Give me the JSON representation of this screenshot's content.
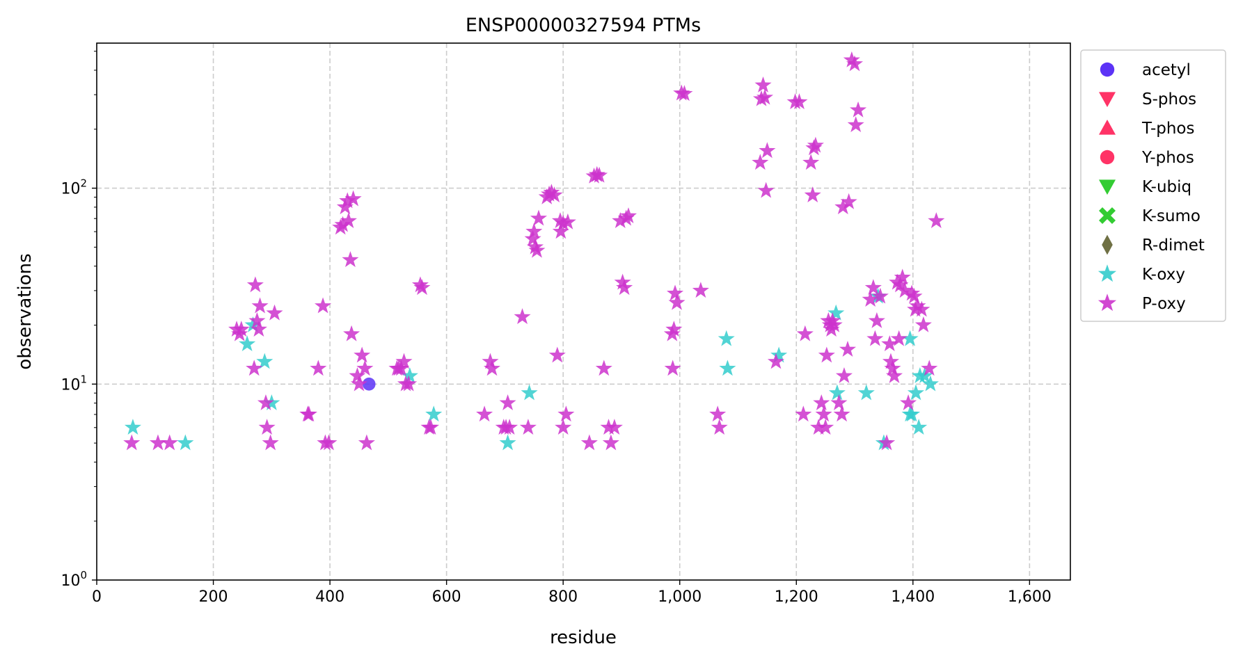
{
  "chart_data": {
    "type": "scatter",
    "title": "ENSP00000327594 PTMs",
    "xlabel": "residue",
    "ylabel": "observations",
    "xlim": [
      0,
      1670
    ],
    "ylim": [
      1,
      550
    ],
    "yscale": "log",
    "grid": true,
    "legend_position": "outside-right",
    "x_ticks": [
      0,
      200,
      400,
      600,
      800,
      1000,
      1200,
      1400,
      1600
    ],
    "x_tick_labels": [
      "0",
      "200",
      "400",
      "600",
      "800",
      "1,000",
      "1,200",
      "1,400",
      "1,600"
    ],
    "y_ticks": [
      1,
      10,
      100
    ],
    "y_tick_labels": [
      {
        "base": "10",
        "exp": "0"
      },
      {
        "base": "10",
        "exp": "1"
      },
      {
        "base": "10",
        "exp": "2"
      }
    ],
    "series": [
      {
        "name": "acetyl",
        "marker": "circle",
        "color": "#5c33f6",
        "points": [
          [
            467,
            10
          ]
        ]
      },
      {
        "name": "S-phos",
        "marker": "triangle-down",
        "color": "#ff3366",
        "points": []
      },
      {
        "name": "T-phos",
        "marker": "triangle-up",
        "color": "#ff3366",
        "points": []
      },
      {
        "name": "Y-phos",
        "marker": "circle",
        "color": "#ff3366",
        "points": []
      },
      {
        "name": "K-ubiq",
        "marker": "triangle-down",
        "color": "#33cc33",
        "points": []
      },
      {
        "name": "K-sumo",
        "marker": "x",
        "color": "#33cc33",
        "points": []
      },
      {
        "name": "R-dimet",
        "marker": "diamond",
        "color": "#6f7044",
        "points": []
      },
      {
        "name": "K-oxy",
        "marker": "star",
        "color": "#33cccc",
        "points": [
          [
            62,
            6
          ],
          [
            152,
            5
          ],
          [
            258,
            16
          ],
          [
            268,
            20
          ],
          [
            288,
            13
          ],
          [
            300,
            8
          ],
          [
            537,
            11
          ],
          [
            578,
            7
          ],
          [
            705,
            5
          ],
          [
            742,
            9
          ],
          [
            1080,
            17
          ],
          [
            1082,
            12
          ],
          [
            1170,
            14
          ],
          [
            1268,
            23
          ],
          [
            1270,
            9
          ],
          [
            1320,
            9
          ],
          [
            1340,
            28
          ],
          [
            1350,
            5
          ],
          [
            1395,
            17
          ],
          [
            1395,
            7
          ],
          [
            1398,
            7
          ],
          [
            1405,
            9
          ],
          [
            1410,
            6
          ],
          [
            1412,
            11
          ],
          [
            1420,
            11
          ],
          [
            1430,
            10
          ]
        ]
      },
      {
        "name": "P-oxy",
        "marker": "star",
        "color": "#cc33cc",
        "points": [
          [
            60,
            5
          ],
          [
            105,
            5
          ],
          [
            125,
            5
          ],
          [
            240,
            19
          ],
          [
            245,
            18
          ],
          [
            248,
            19
          ],
          [
            270,
            12
          ],
          [
            272,
            32
          ],
          [
            275,
            21
          ],
          [
            278,
            19
          ],
          [
            280,
            25
          ],
          [
            290,
            8
          ],
          [
            292,
            6
          ],
          [
            298,
            5
          ],
          [
            305,
            23
          ],
          [
            362,
            7
          ],
          [
            364,
            7
          ],
          [
            380,
            12
          ],
          [
            388,
            25
          ],
          [
            392,
            5
          ],
          [
            398,
            5
          ],
          [
            418,
            63
          ],
          [
            422,
            65
          ],
          [
            426,
            80
          ],
          [
            430,
            86
          ],
          [
            432,
            68
          ],
          [
            435,
            43
          ],
          [
            437,
            18
          ],
          [
            440,
            88
          ],
          [
            447,
            11
          ],
          [
            450,
            10
          ],
          [
            455,
            14
          ],
          [
            460,
            12
          ],
          [
            463,
            5
          ],
          [
            515,
            12
          ],
          [
            518,
            12
          ],
          [
            522,
            12
          ],
          [
            527,
            13
          ],
          [
            530,
            10
          ],
          [
            535,
            10
          ],
          [
            555,
            32
          ],
          [
            558,
            31
          ],
          [
            570,
            6
          ],
          [
            573,
            6
          ],
          [
            665,
            7
          ],
          [
            675,
            13
          ],
          [
            678,
            12
          ],
          [
            698,
            6
          ],
          [
            702,
            6
          ],
          [
            705,
            8
          ],
          [
            708,
            6
          ],
          [
            730,
            22
          ],
          [
            740,
            6
          ],
          [
            748,
            55
          ],
          [
            750,
            60
          ],
          [
            752,
            50
          ],
          [
            755,
            48
          ],
          [
            758,
            70
          ],
          [
            772,
            90
          ],
          [
            776,
            93
          ],
          [
            780,
            95
          ],
          [
            785,
            92
          ],
          [
            790,
            14
          ],
          [
            795,
            68
          ],
          [
            796,
            60
          ],
          [
            800,
            66
          ],
          [
            800,
            6
          ],
          [
            805,
            7
          ],
          [
            808,
            67
          ],
          [
            845,
            5
          ],
          [
            853,
            115
          ],
          [
            858,
            117
          ],
          [
            862,
            116
          ],
          [
            870,
            12
          ],
          [
            878,
            6
          ],
          [
            882,
            5
          ],
          [
            888,
            6
          ],
          [
            898,
            68
          ],
          [
            902,
            33
          ],
          [
            905,
            31
          ],
          [
            908,
            70
          ],
          [
            912,
            72
          ],
          [
            987,
            18
          ],
          [
            988,
            12
          ],
          [
            990,
            19
          ],
          [
            992,
            29
          ],
          [
            995,
            26
          ],
          [
            1003,
            305
          ],
          [
            1008,
            303
          ],
          [
            1036,
            30
          ],
          [
            1065,
            7
          ],
          [
            1068,
            6
          ],
          [
            1138,
            135
          ],
          [
            1140,
            285
          ],
          [
            1143,
            335
          ],
          [
            1146,
            290
          ],
          [
            1148,
            97
          ],
          [
            1150,
            155
          ],
          [
            1165,
            13
          ],
          [
            1198,
            275
          ],
          [
            1205,
            275
          ],
          [
            1215,
            18
          ],
          [
            1212,
            7
          ],
          [
            1225,
            135
          ],
          [
            1228,
            92
          ],
          [
            1230,
            160
          ],
          [
            1233,
            165
          ],
          [
            1238,
            6
          ],
          [
            1243,
            8
          ],
          [
            1247,
            7
          ],
          [
            1250,
            6
          ],
          [
            1252,
            14
          ],
          [
            1255,
            21
          ],
          [
            1258,
            20
          ],
          [
            1260,
            19
          ],
          [
            1262,
            21
          ],
          [
            1265,
            20
          ],
          [
            1273,
            8
          ],
          [
            1278,
            7
          ],
          [
            1280,
            80
          ],
          [
            1282,
            11
          ],
          [
            1288,
            15
          ],
          [
            1290,
            85
          ],
          [
            1295,
            450
          ],
          [
            1300,
            430
          ],
          [
            1302,
            210
          ],
          [
            1306,
            250
          ],
          [
            1327,
            27
          ],
          [
            1332,
            31
          ],
          [
            1335,
            17
          ],
          [
            1338,
            21
          ],
          [
            1344,
            28
          ],
          [
            1355,
            5
          ],
          [
            1360,
            16
          ],
          [
            1362,
            13
          ],
          [
            1365,
            12
          ],
          [
            1368,
            11
          ],
          [
            1373,
            33
          ],
          [
            1376,
            17
          ],
          [
            1378,
            32
          ],
          [
            1382,
            35
          ],
          [
            1386,
            30
          ],
          [
            1392,
            8
          ],
          [
            1398,
            29
          ],
          [
            1402,
            28
          ],
          [
            1404,
            24
          ],
          [
            1408,
            25
          ],
          [
            1415,
            24
          ],
          [
            1418,
            20
          ],
          [
            1428,
            12
          ],
          [
            1440,
            68
          ]
        ]
      }
    ]
  }
}
